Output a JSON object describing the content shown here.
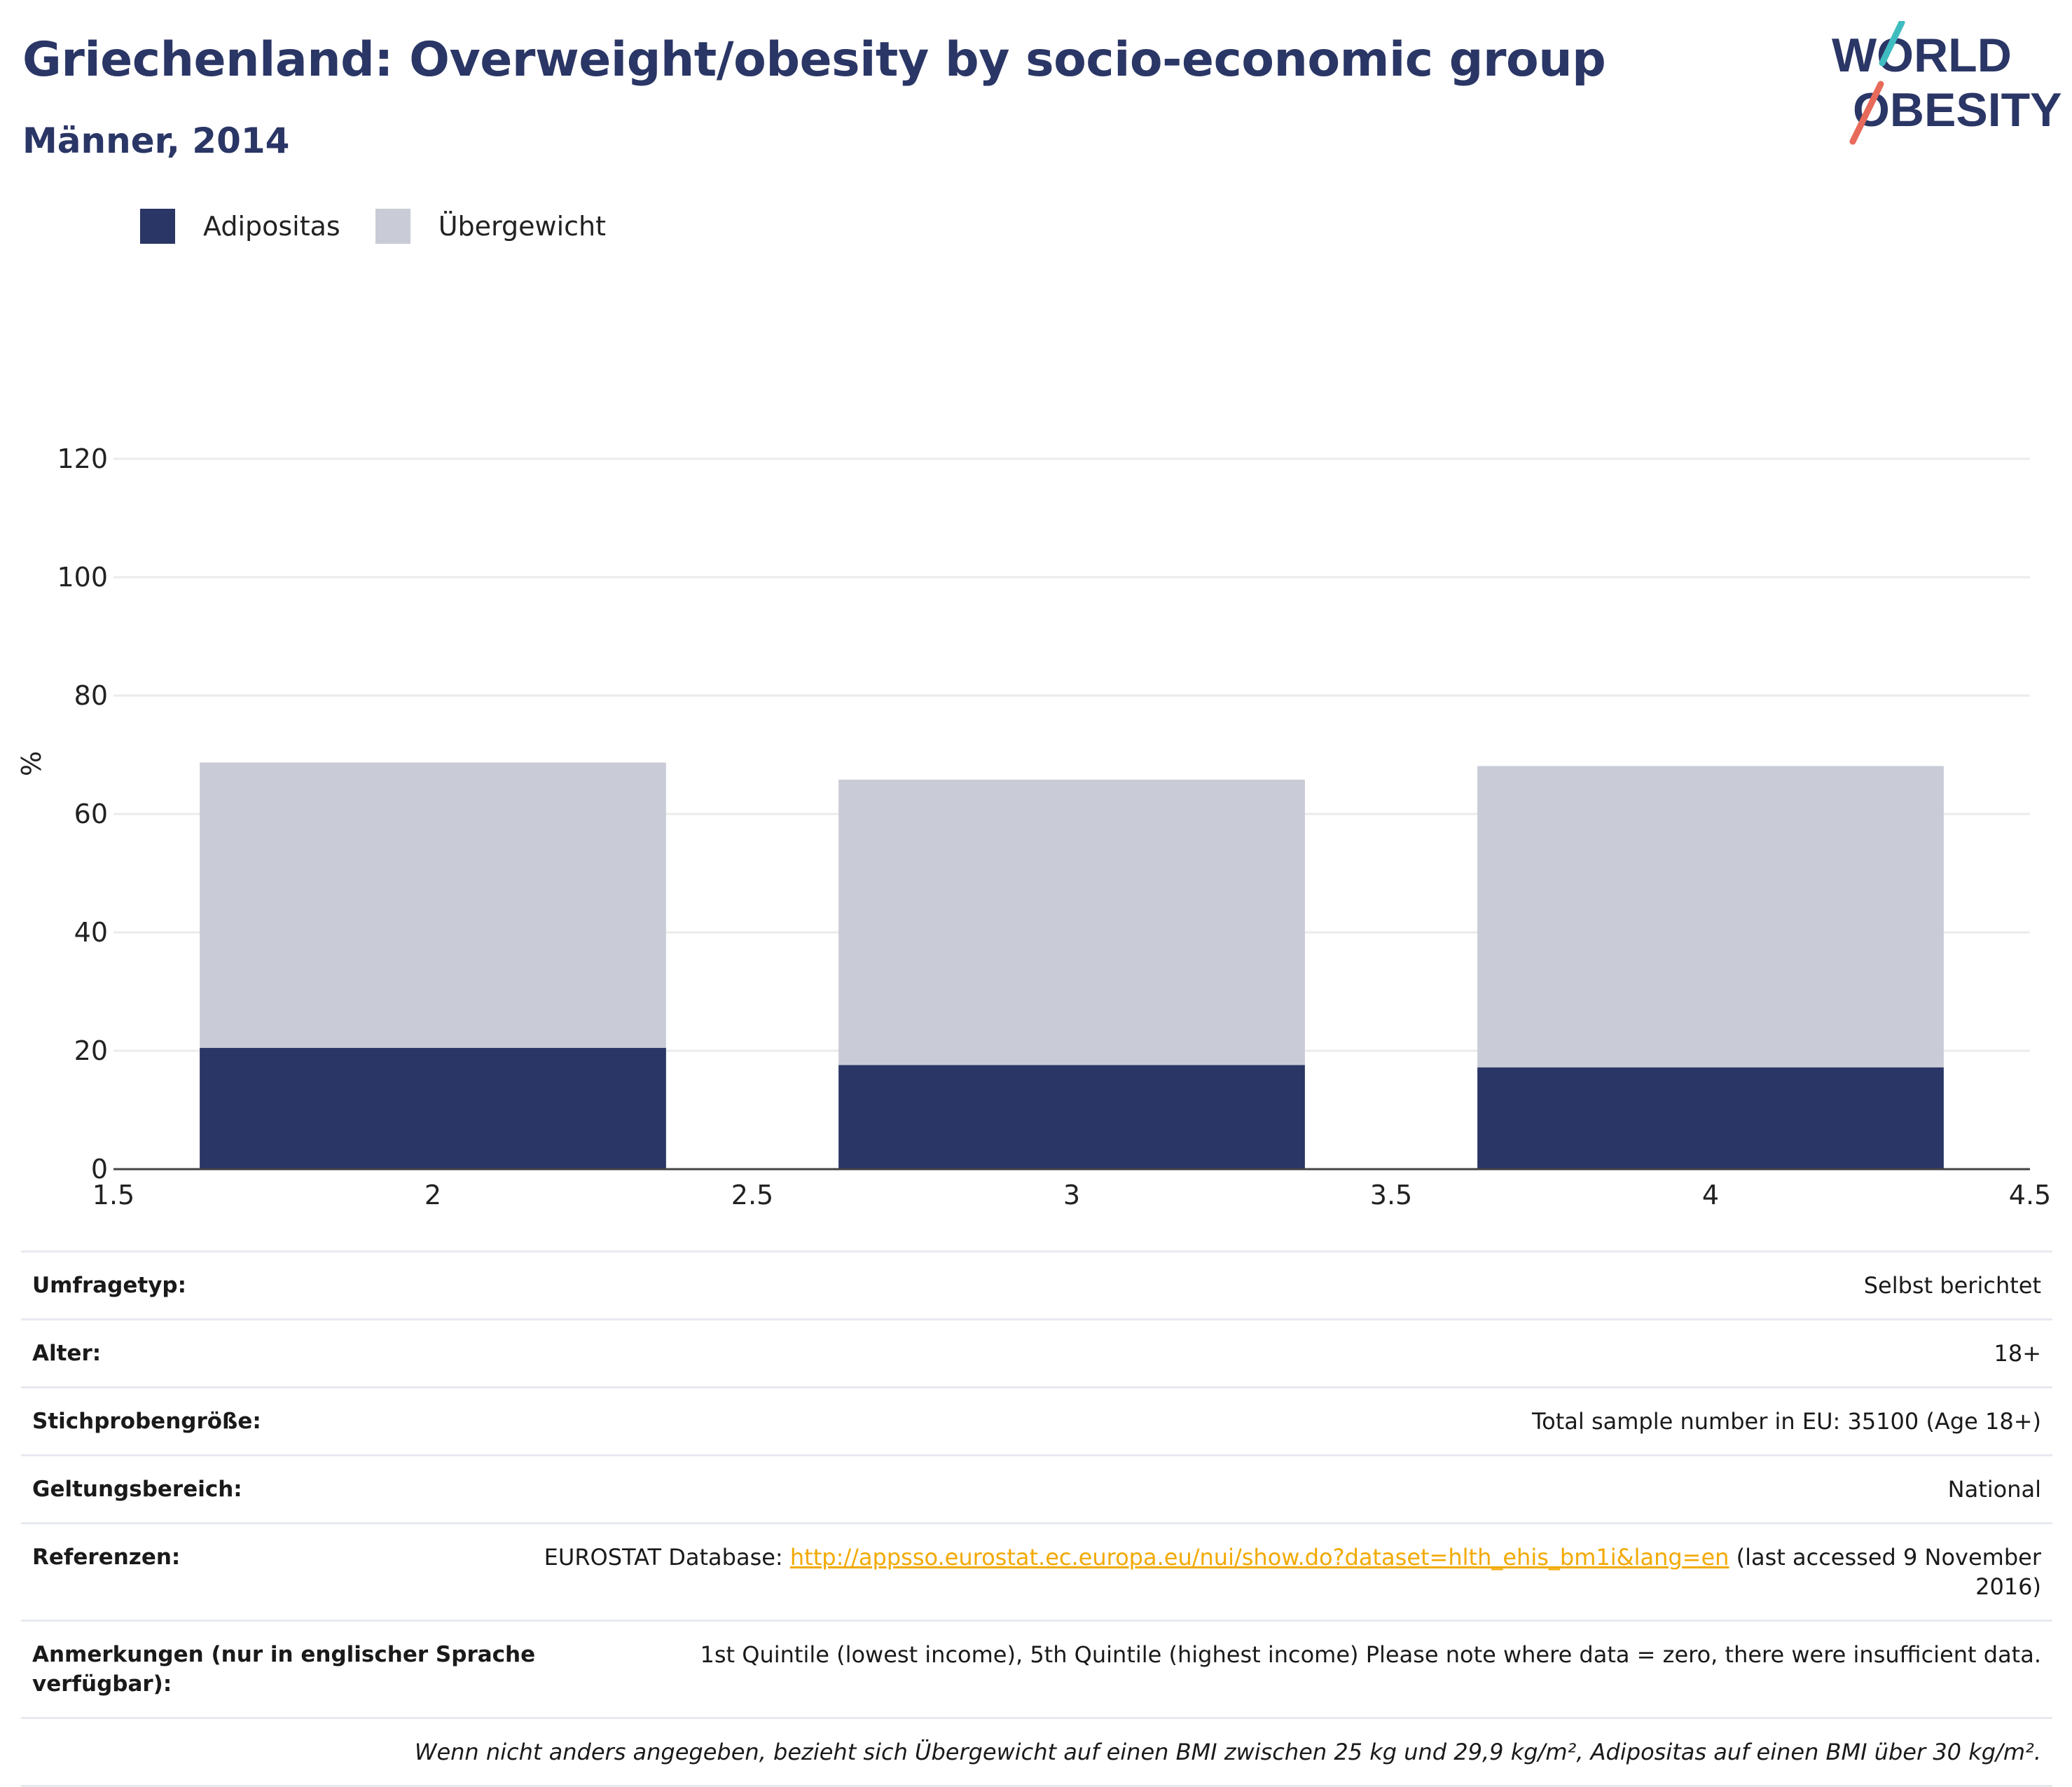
{
  "header": {
    "title": "Griechenland: Overweight/obesity by socio-economic group",
    "subtitle": "Männer, 2014"
  },
  "logo": {
    "line1": "WORLD",
    "line2": "OBESITY"
  },
  "colors": {
    "adipositas": "#2a3665",
    "uebergewicht": "#c9cbd6",
    "title": "#2a3665",
    "link": "#f2a900",
    "logo_teal": "#3fbcc0",
    "logo_red": "#e86a5a"
  },
  "chart_data": {
    "type": "bar",
    "stacked": true,
    "ylabel": "%",
    "xlabel": "",
    "xlim": [
      1.5,
      4.5
    ],
    "ylim": [
      0,
      120
    ],
    "x_ticks": [
      "1.5",
      "2",
      "2.5",
      "3",
      "3.5",
      "4",
      "4.5"
    ],
    "y_ticks": [
      "0",
      "20",
      "40",
      "60",
      "80",
      "100",
      "120"
    ],
    "grid": true,
    "legend_placement": "top-left",
    "x": [
      2,
      3,
      4
    ],
    "series": [
      {
        "name": "Adipositas",
        "values": [
          20.5,
          17.6,
          17.2
        ]
      },
      {
        "name": "Übergewicht",
        "values": [
          48.2,
          48.2,
          50.9
        ]
      }
    ]
  },
  "info": {
    "rows": [
      {
        "label": "Umfragetyp:",
        "value": "Selbst berichtet"
      },
      {
        "label": "Alter:",
        "value": "18+"
      },
      {
        "label": "Stichprobengröße:",
        "value": "Total sample number in EU: 35100 (Age 18+)"
      },
      {
        "label": "Geltungsbereich:",
        "value": "National"
      }
    ],
    "references": {
      "label": "Referenzen:",
      "prefix": "EUROSTAT Database: ",
      "link": "http://appsso.eurostat.ec.europa.eu/nui/show.do?dataset=hlth_ehis_bm1i&lang=en",
      "suffix": " (last accessed 9 November 2016)"
    },
    "notes": {
      "label": "Anmerkungen (nur in englischer Sprache verfügbar):",
      "value": "1st Quintile (lowest income), 5th Quintile (highest income) Please note where data = zero, there were insufficient data."
    },
    "footnote": "Wenn nicht anders angegeben, bezieht sich Übergewicht auf einen BMI zwischen 25 kg und 29,9 kg/m², Adipositas auf einen BMI über 30 kg/m²."
  }
}
